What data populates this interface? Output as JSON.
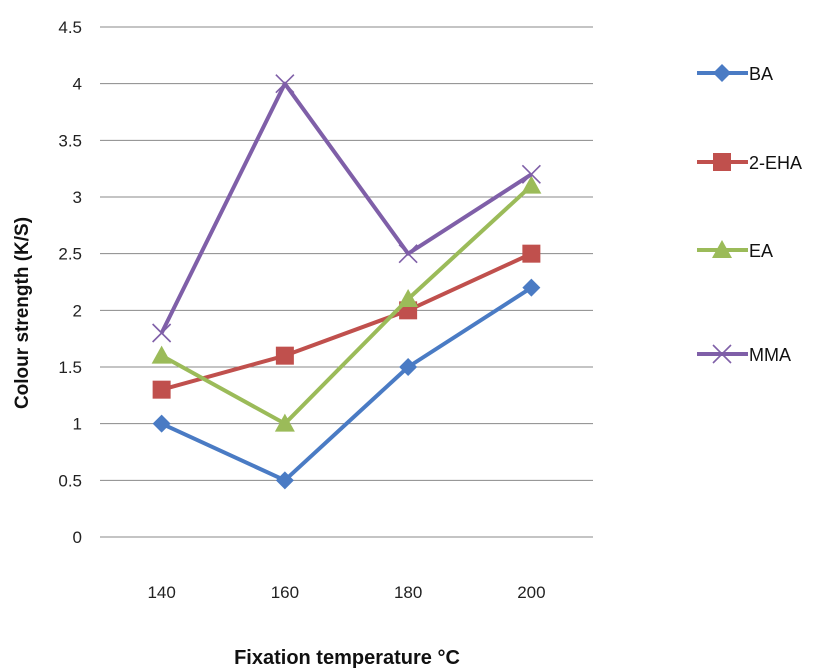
{
  "chart_data": {
    "type": "line",
    "categories": [
      "140",
      "160",
      "180",
      "200"
    ],
    "title": "",
    "xlabel": "Fixation temperature °C",
    "ylabel": "Colour strength (K/S)",
    "ylim": [
      0,
      4.5
    ],
    "yticks": [
      "0",
      "0.5",
      "1",
      "1.5",
      "2",
      "2.5",
      "3",
      "3.5",
      "4",
      "4.5"
    ],
    "grid": "horizontal",
    "legend": "right",
    "series": [
      {
        "name": "BA",
        "values": [
          1.0,
          0.5,
          1.5,
          2.2
        ],
        "color": "#4a7bc4",
        "marker": "diamond"
      },
      {
        "name": "2-EHA",
        "values": [
          1.3,
          1.6,
          2.0,
          2.5
        ],
        "color": "#c0504d",
        "marker": "square"
      },
      {
        "name": "EA",
        "values": [
          1.6,
          1.0,
          2.1,
          3.1
        ],
        "color": "#9bbb59",
        "marker": "triangle"
      },
      {
        "name": "MMA",
        "values": [
          1.8,
          4.0,
          2.5,
          3.2
        ],
        "color": "#7f5fa8",
        "marker": "x"
      }
    ]
  }
}
